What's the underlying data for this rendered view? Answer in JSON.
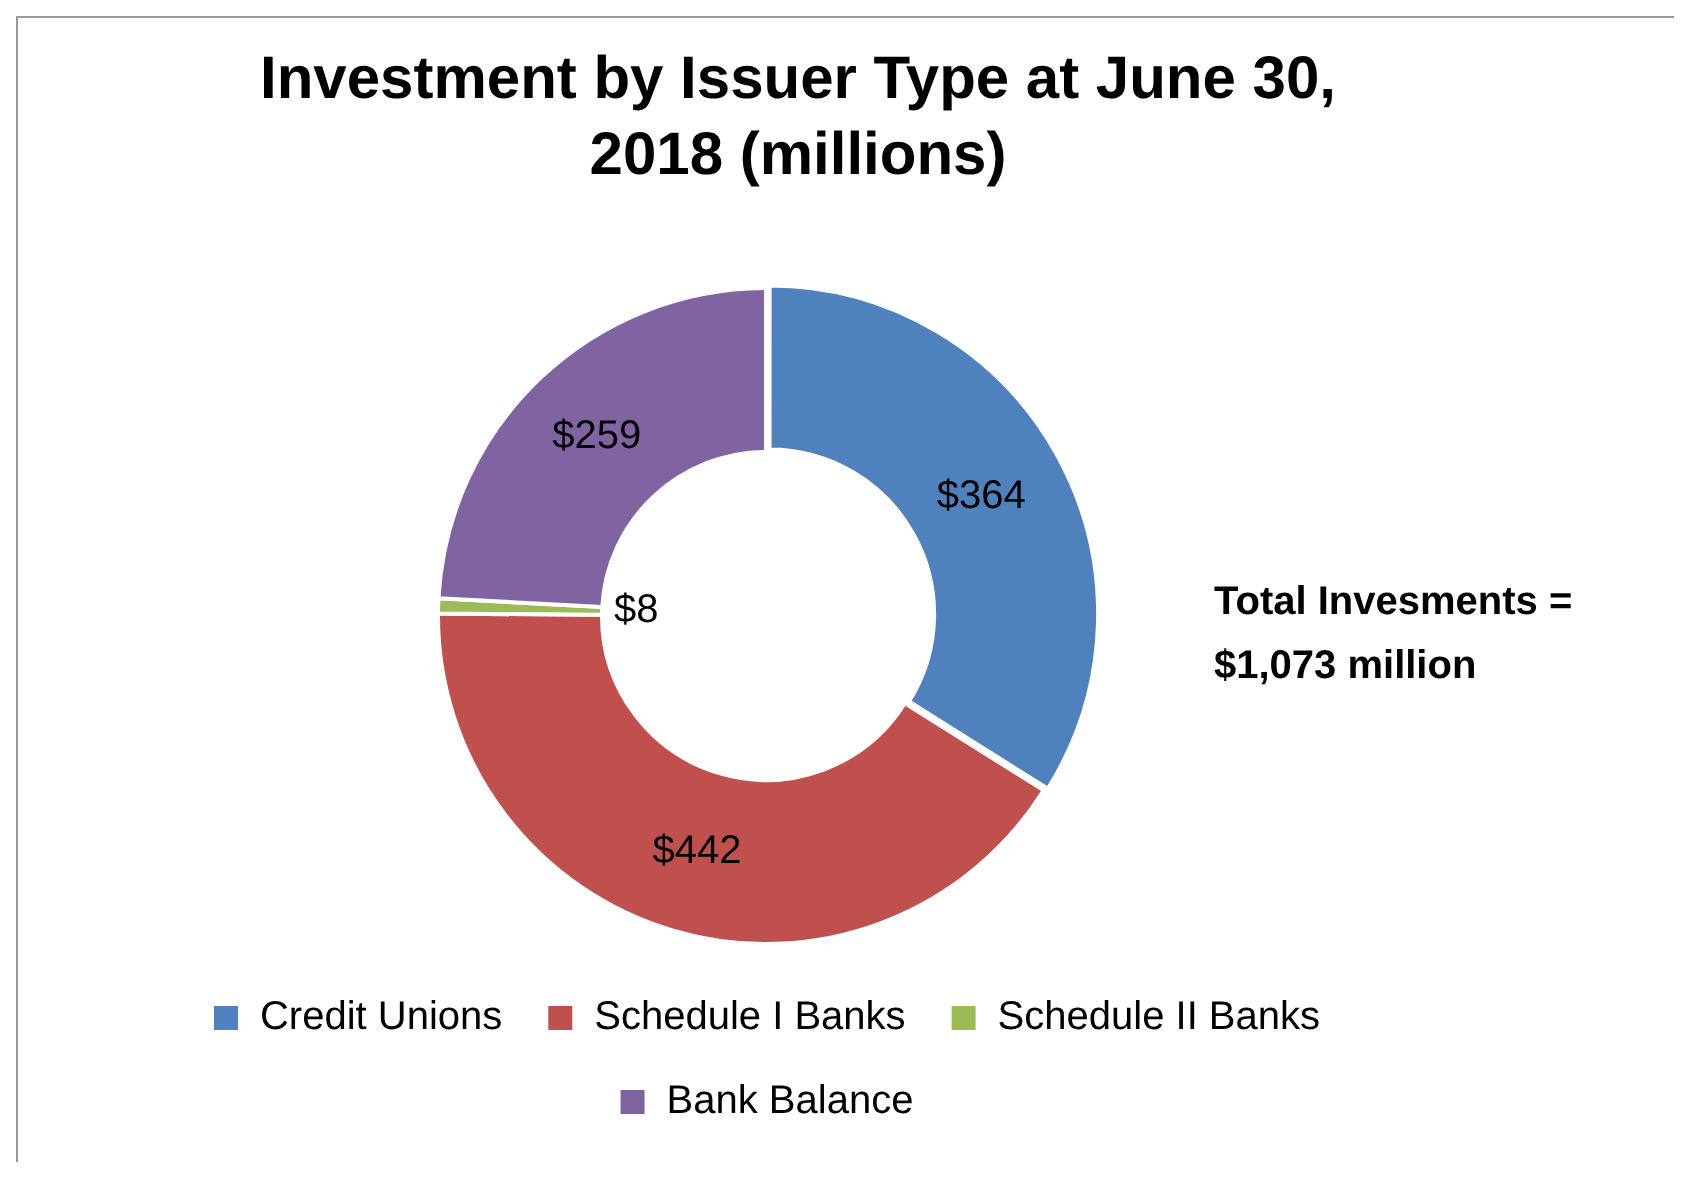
{
  "chart_data": {
    "type": "donut",
    "title": "Investment by Issuer Type at June 30, 2018 (millions)",
    "categories": [
      "Credit Unions",
      "Schedule I Banks",
      "Schedule II Banks",
      "Bank Balance"
    ],
    "values": [
      364,
      442,
      8,
      259
    ],
    "colors": [
      "#4f81bd",
      "#c0504d",
      "#9bbb59",
      "#8064a2"
    ],
    "value_labels": [
      "$364",
      "$442",
      "$8",
      "$259"
    ],
    "legend": "bottom",
    "annotations": [
      "Total Invesments = $1,073 million"
    ]
  }
}
